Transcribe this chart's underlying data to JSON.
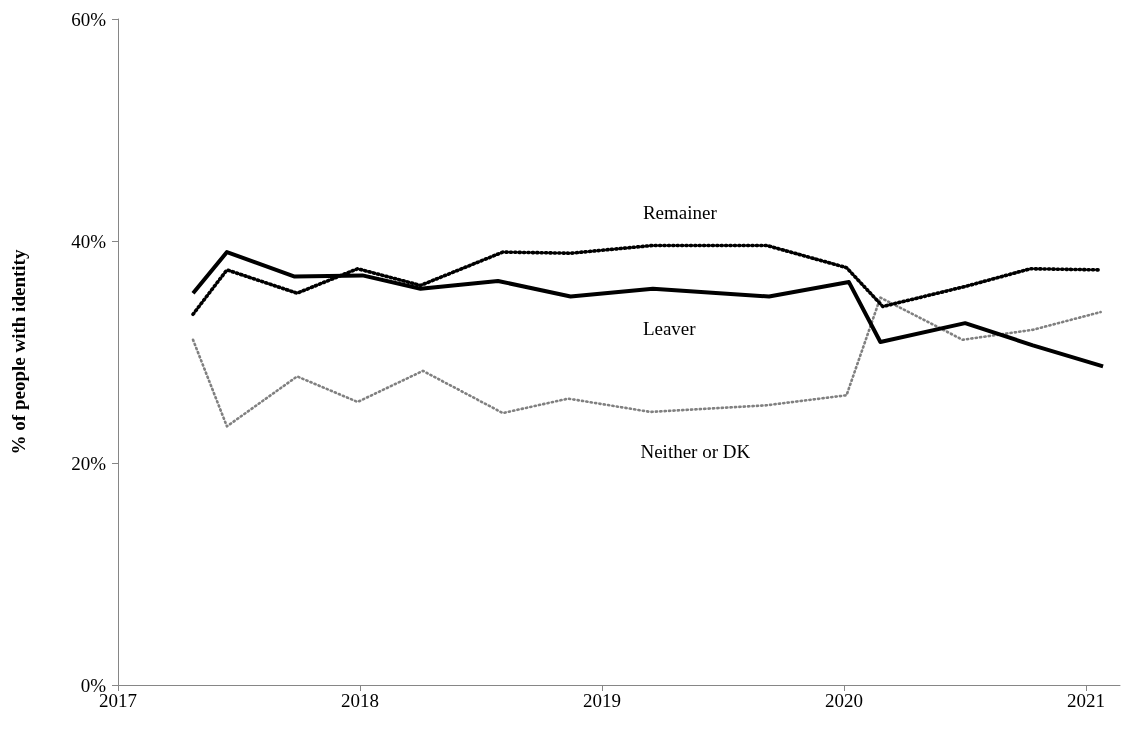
{
  "chart_data": {
    "type": "line",
    "ylabel": "% of people with identity",
    "xlim": [
      2017,
      2021.14
    ],
    "xticks": [
      2017,
      2018,
      2019,
      2020,
      2021
    ],
    "ylim": [
      0,
      60
    ],
    "yticks": [
      {
        "value": 0,
        "label": "0%"
      },
      {
        "value": 20,
        "label": "20%"
      },
      {
        "value": 40,
        "label": "40%"
      },
      {
        "value": 60,
        "label": "60%"
      }
    ],
    "grid": false,
    "marker": "none",
    "series": [
      {
        "name": "Leaver",
        "color": "#000000",
        "line_style": "solid",
        "x": [
          2017.31,
          2017.45,
          2017.73,
          2018.01,
          2018.25,
          2018.57,
          2018.87,
          2019.21,
          2019.69,
          2020.02,
          2020.15,
          2020.5,
          2020.78,
          2021.07
        ],
        "values": [
          35.3,
          39.0,
          36.8,
          36.9,
          35.7,
          36.4,
          35.0,
          35.7,
          35.0,
          36.3,
          30.9,
          32.6,
          30.6,
          28.7
        ]
      },
      {
        "name": "Remainer",
        "color": "#000000",
        "line_style": "dotted",
        "x": [
          2017.31,
          2017.45,
          2017.74,
          2017.99,
          2018.25,
          2018.59,
          2018.87,
          2019.21,
          2019.68,
          2020.01,
          2020.16,
          2020.5,
          2020.77,
          2021.05
        ],
        "values": [
          33.4,
          37.4,
          35.3,
          37.5,
          36.0,
          39.0,
          38.9,
          39.6,
          39.6,
          37.6,
          34.1,
          35.9,
          37.5,
          37.4
        ]
      },
      {
        "name": "Neither or DK",
        "color": "#808080",
        "line_style": "dotted",
        "x": [
          2017.31,
          2017.45,
          2017.74,
          2017.99,
          2018.26,
          2018.59,
          2018.86,
          2019.2,
          2019.68,
          2020.01,
          2020.15,
          2020.49,
          2020.78,
          2021.06
        ],
        "values": [
          31.1,
          23.3,
          27.8,
          25.5,
          28.3,
          24.5,
          25.8,
          24.6,
          25.2,
          26.1,
          34.9,
          31.1,
          32.0,
          33.6
        ]
      }
    ]
  }
}
